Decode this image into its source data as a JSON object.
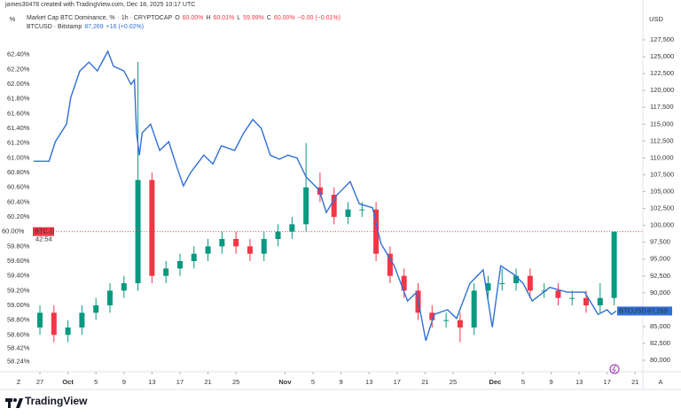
{
  "header": {
    "credit": "james30478 created with TradingView.com, Dec 18, 2025 10:17 UTC",
    "left_unit": "%",
    "right_unit": "USD"
  },
  "legend_info": {
    "dom_suffix": "· 1h · CRYPTOCAP",
    "o_key": "O",
    "o": "60.00%",
    "h_key": "H",
    "h": "60.01%",
    "l_key": "L",
    "l": "59.99%",
    "c_key": "C",
    "c": "60.00%",
    "dom_change": "−0.00 (−0.01%)",
    "btc_price": "87,269",
    "btc_change": "+16 (+0.02%)"
  },
  "last_labels": {
    "dom_value": "60.00%",
    "dom_symbol": "BTC.D",
    "countdown": "42:54",
    "btc_symbol": "BTCUSD",
    "btc_value": "87,269"
  },
  "axis_corners": {
    "left": "Z",
    "right": "A"
  },
  "footer": {
    "brand": "TradingView"
  },
  "chart_data": {
    "type": "candlestick",
    "xlim": [
      -5.7,
      86.1
    ],
    "ylim": [
      58.1,
      62.78
    ],
    "y2lim": [
      78300,
      129470
    ],
    "grid": false,
    "xticks": [
      {
        "value": 0,
        "label": "27"
      },
      {
        "value": 4,
        "label": "Oct"
      },
      {
        "value": 8,
        "label": "5"
      },
      {
        "value": 12,
        "label": "9"
      },
      {
        "value": 16,
        "label": "13"
      },
      {
        "value": 20,
        "label": "17"
      },
      {
        "value": 24,
        "label": "21"
      },
      {
        "value": 28,
        "label": "25"
      },
      {
        "value": 35,
        "label": "Nov"
      },
      {
        "value": 39,
        "label": "5"
      },
      {
        "value": 43,
        "label": "9"
      },
      {
        "value": 47,
        "label": "13"
      },
      {
        "value": 51,
        "label": "17"
      },
      {
        "value": 55,
        "label": "21"
      },
      {
        "value": 59,
        "label": "25"
      },
      {
        "value": 65,
        "label": "Dec"
      },
      {
        "value": 69,
        "label": "5"
      },
      {
        "value": 73,
        "label": "9"
      },
      {
        "value": 77,
        "label": "13"
      },
      {
        "value": 81,
        "label": "17"
      },
      {
        "value": 85,
        "label": "21"
      }
    ],
    "yticks": [
      {
        "value": 62.4,
        "label": "62.40%"
      },
      {
        "value": 62.2,
        "label": "62.20%"
      },
      {
        "value": 62.0,
        "label": "62.00%"
      },
      {
        "value": 61.8,
        "label": "61.80%"
      },
      {
        "value": 61.6,
        "label": "61.60%"
      },
      {
        "value": 61.4,
        "label": "61.40%"
      },
      {
        "value": 61.2,
        "label": "61.20%"
      },
      {
        "value": 61.0,
        "label": "61.00%"
      },
      {
        "value": 60.8,
        "label": "60.80%"
      },
      {
        "value": 60.6,
        "label": "60.60%"
      },
      {
        "value": 60.4,
        "label": "60.40%"
      },
      {
        "value": 60.2,
        "label": "60.20%"
      },
      {
        "value": 59.8,
        "label": "59.80%"
      },
      {
        "value": 59.6,
        "label": "59.60%"
      },
      {
        "value": 59.4,
        "label": "59.40%"
      },
      {
        "value": 59.2,
        "label": "59.20%"
      },
      {
        "value": 59.0,
        "label": "59.00%"
      },
      {
        "value": 58.8,
        "label": "58.80%"
      },
      {
        "value": 58.6,
        "label": "58.60%"
      },
      {
        "value": 58.42,
        "label": "58.42%"
      },
      {
        "value": 58.24,
        "label": "58.24%"
      }
    ],
    "y2ticks": [
      {
        "value": 127500,
        "label": "127,500"
      },
      {
        "value": 125000,
        "label": "125,000"
      },
      {
        "value": 122500,
        "label": "122,500"
      },
      {
        "value": 120000,
        "label": "120,000"
      },
      {
        "value": 117500,
        "label": "117,500"
      },
      {
        "value": 115000,
        "label": "115,000"
      },
      {
        "value": 112500,
        "label": "112,500"
      },
      {
        "value": 110000,
        "label": "110,000"
      },
      {
        "value": 107500,
        "label": "107,500"
      },
      {
        "value": 105000,
        "label": "105,000"
      },
      {
        "value": 102500,
        "label": "102,500"
      },
      {
        "value": 100000,
        "label": "100,000"
      },
      {
        "value": 97500,
        "label": "97,500"
      },
      {
        "value": 95000,
        "label": "95,000"
      },
      {
        "value": 92500,
        "label": "92,500"
      },
      {
        "value": 90000,
        "label": "90,000"
      },
      {
        "value": 85000,
        "label": "85,000"
      },
      {
        "value": 82500,
        "label": "82,500"
      },
      {
        "value": 80000,
        "label": "80,000"
      }
    ],
    "series": [
      {
        "name": "Market Cap BTC Dominance, %",
        "type": "candlestick",
        "up_color": "#089981",
        "down_color": "#f23645",
        "x": [
          0,
          2,
          4,
          6,
          8,
          10,
          12,
          14,
          16,
          18,
          20,
          22,
          24,
          26,
          28,
          30,
          32,
          34,
          36,
          38,
          40,
          42,
          44,
          46,
          48,
          50,
          52,
          54,
          56,
          58,
          60,
          62,
          64,
          66,
          68,
          70,
          72,
          74,
          76,
          78,
          80,
          82
        ],
        "open": [
          58.7,
          58.9,
          58.6,
          58.7,
          58.9,
          59.0,
          59.2,
          59.3,
          60.7,
          59.4,
          59.5,
          59.6,
          59.7,
          59.8,
          59.9,
          59.8,
          59.7,
          59.9,
          60.0,
          60.1,
          60.6,
          60.5,
          60.2,
          60.3,
          60.3,
          59.7,
          59.4,
          59.2,
          58.9,
          58.8,
          58.8,
          58.7,
          59.2,
          59.3,
          59.3,
          59.4,
          59.2,
          59.2,
          59.1,
          59.1,
          59.0,
          59.1
        ],
        "high": [
          59.0,
          59.0,
          58.8,
          59.0,
          59.1,
          59.3,
          59.4,
          62.3,
          60.8,
          59.6,
          59.7,
          59.8,
          59.9,
          60.0,
          60.0,
          59.9,
          60.0,
          60.1,
          60.2,
          61.2,
          60.8,
          60.6,
          60.4,
          60.4,
          60.4,
          59.8,
          59.5,
          59.3,
          59.0,
          58.9,
          58.9,
          59.3,
          59.4,
          59.5,
          59.5,
          59.5,
          59.3,
          59.3,
          59.2,
          59.2,
          59.3,
          60.0
        ],
        "low": [
          58.6,
          58.5,
          58.5,
          58.6,
          58.8,
          58.9,
          59.1,
          59.2,
          59.3,
          59.3,
          59.4,
          59.5,
          59.6,
          59.7,
          59.7,
          59.6,
          59.6,
          59.8,
          59.9,
          60.0,
          60.4,
          60.1,
          60.1,
          60.2,
          59.6,
          59.3,
          59.1,
          58.8,
          58.7,
          58.7,
          58.5,
          58.6,
          59.1,
          59.2,
          59.2,
          59.1,
          59.1,
          59.0,
          59.0,
          58.9,
          58.9,
          59.0
        ],
        "close": [
          58.9,
          58.6,
          58.7,
          58.9,
          59.0,
          59.2,
          59.3,
          60.7,
          59.4,
          59.5,
          59.6,
          59.7,
          59.8,
          59.9,
          59.8,
          59.7,
          59.9,
          60.0,
          60.1,
          60.6,
          60.5,
          60.2,
          60.3,
          60.3,
          59.7,
          59.4,
          59.2,
          58.9,
          58.8,
          58.8,
          58.7,
          59.2,
          59.3,
          59.3,
          59.4,
          59.2,
          59.2,
          59.1,
          59.1,
          59.0,
          59.1,
          60.0
        ]
      },
      {
        "name": "BTCUSD · Bitstamp",
        "type": "line",
        "axis": "y2",
        "color": "#2f6fd6",
        "x": [
          -0.9,
          1.3,
          2.2,
          3.8,
          4.4,
          5.7,
          7.0,
          8.2,
          9.7,
          10.5,
          12.0,
          13.0,
          13.5,
          13.8,
          14.2,
          14.6,
          15.8,
          17.1,
          18.4,
          19.6,
          20.5,
          21.5,
          23.4,
          24.7,
          25.9,
          27.8,
          29.1,
          30.4,
          31.6,
          32.9,
          34.2,
          35.4,
          36.7,
          38.0,
          39.9,
          40.9,
          42.4,
          44.3,
          45.6,
          47.5,
          48.7,
          50.6,
          52.5,
          53.8,
          55.1,
          56.3,
          58.2,
          59.5,
          61.4,
          63.3,
          64.6,
          65.8,
          67.7,
          69.0,
          70.3,
          72.8,
          75.3,
          77.8,
          79.7,
          81.0,
          81.6,
          82.3
        ],
        "values": [
          109500,
          109500,
          112400,
          115000,
          118950,
          122900,
          124200,
          122900,
          125800,
          123600,
          122900,
          120900,
          121600,
          113700,
          110400,
          113700,
          115000,
          111100,
          112400,
          108500,
          105850,
          107800,
          110400,
          109100,
          111800,
          111100,
          113700,
          115700,
          114400,
          110400,
          109800,
          110400,
          110000,
          107200,
          105200,
          101900,
          104500,
          106500,
          103200,
          102600,
          97300,
          94000,
          88800,
          90100,
          82900,
          86800,
          87500,
          86200,
          91400,
          93400,
          84900,
          94000,
          92700,
          91400,
          88800,
          90800,
          90100,
          90100,
          86800,
          87500,
          86800,
          87300
        ]
      }
    ]
  }
}
